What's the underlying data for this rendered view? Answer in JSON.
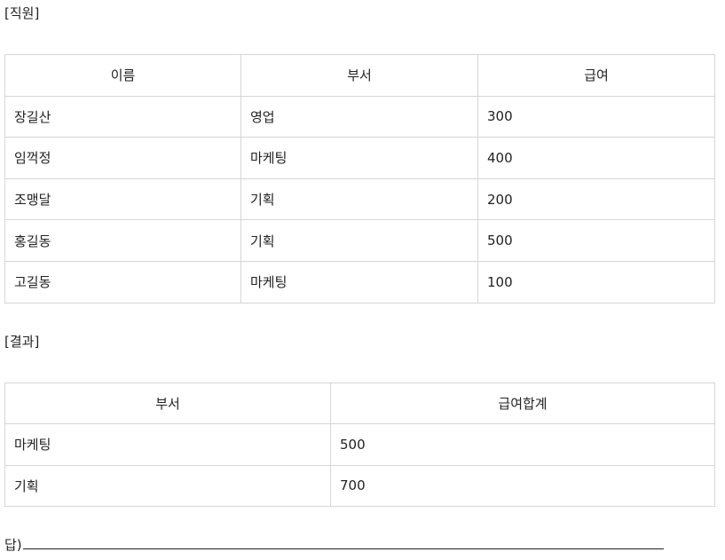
{
  "employee_section": {
    "label": "[직원]",
    "headers": [
      "이름",
      "부서",
      "급여"
    ],
    "rows": [
      [
        "장길산",
        "영업",
        "300"
      ],
      [
        "임꺽정",
        "마케팅",
        "400"
      ],
      [
        "조맹달",
        "기획",
        "200"
      ],
      [
        "홍길동",
        "기획",
        "500"
      ],
      [
        "고길동",
        "마케팅",
        "100"
      ]
    ]
  },
  "result_section": {
    "label": "[결과]",
    "headers": [
      "부서",
      "급여합계"
    ],
    "rows": [
      [
        "마케팅",
        "500"
      ],
      [
        "기획",
        "700"
      ]
    ]
  },
  "answer": {
    "prefix": "답)"
  }
}
